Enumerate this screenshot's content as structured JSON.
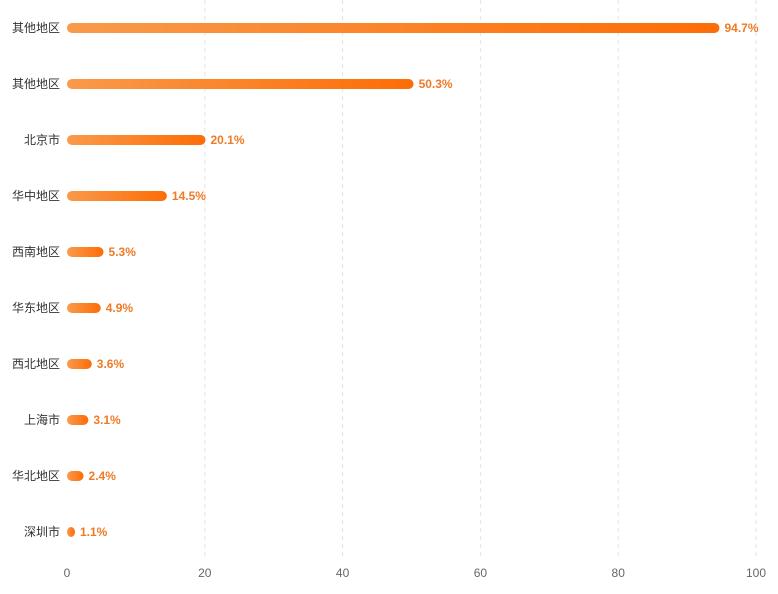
{
  "chart_data": {
    "type": "bar",
    "orientation": "horizontal",
    "categories": [
      "其他地区",
      "其他地区",
      "北京市",
      "华中地区",
      "西南地区",
      "华东地区",
      "西北地区",
      "上海市",
      "华北地区",
      "深圳市"
    ],
    "values": [
      94.7,
      50.3,
      20.1,
      14.5,
      5.3,
      4.9,
      3.6,
      3.1,
      2.4,
      1.1
    ],
    "value_labels": [
      "94.7%",
      "50.3%",
      "20.1%",
      "14.5%",
      "5.3%",
      "4.9%",
      "3.6%",
      "3.1%",
      "2.4%",
      "1.1%"
    ],
    "xlim": [
      0,
      100
    ],
    "x_ticks": [
      0,
      20,
      40,
      60,
      80,
      100
    ],
    "x_tick_labels": [
      "0",
      "20",
      "40",
      "60",
      "80",
      "100"
    ],
    "grid": true,
    "colors": {
      "bar_start": "#f99a4a",
      "bar_end": "#fd6d07",
      "value_label": "#ef7a26"
    }
  }
}
